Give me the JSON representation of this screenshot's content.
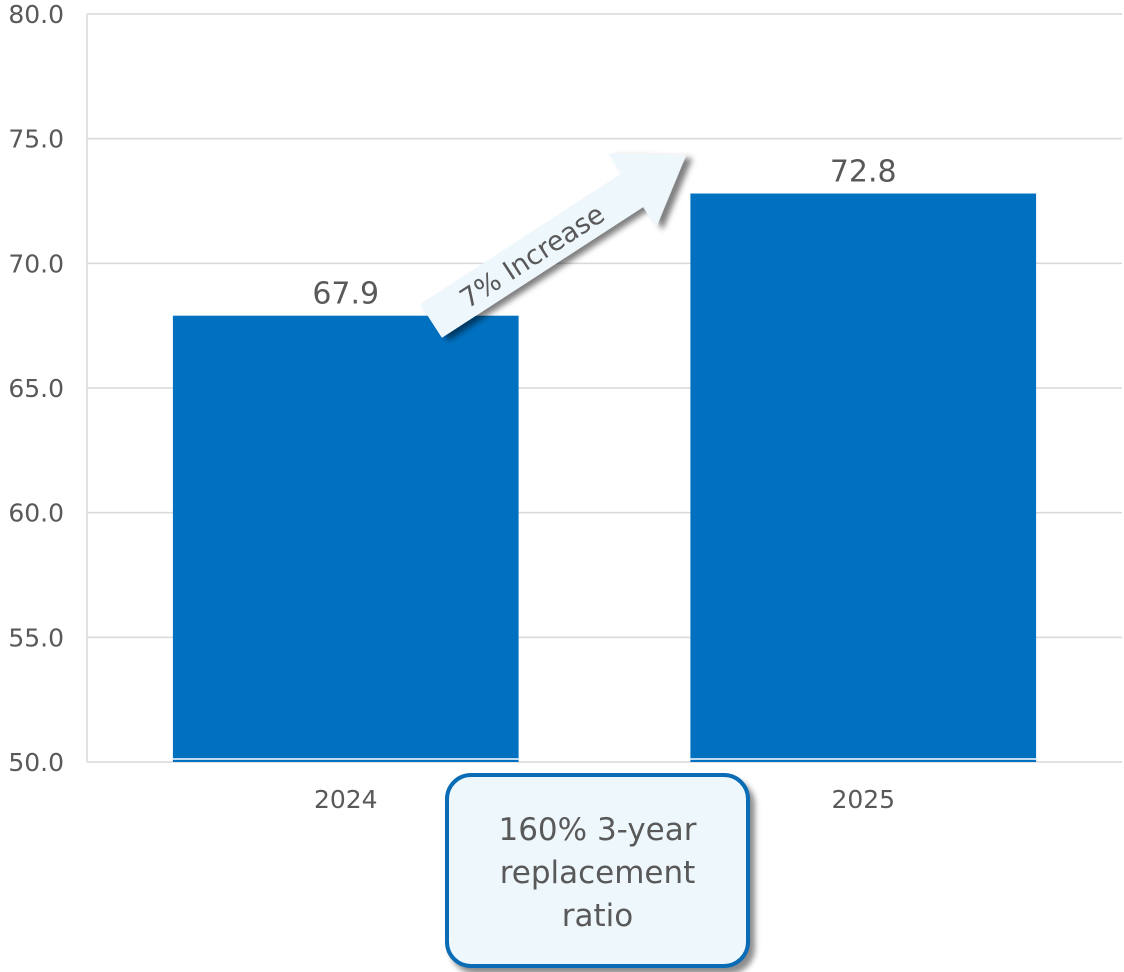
{
  "chart_data": {
    "type": "bar",
    "categories": [
      "2024",
      "2025"
    ],
    "values": [
      67.9,
      72.8
    ],
    "data_labels": [
      "67.9",
      "72.8"
    ],
    "ylim": [
      50.0,
      80.0
    ],
    "y_ticks": [
      "50.0",
      "55.0",
      "60.0",
      "65.0",
      "70.0",
      "75.0",
      "80.0"
    ],
    "grid": true,
    "bar_color": "#0070c0"
  },
  "annotations": {
    "arrow_label": "7% Increase",
    "callout": "160% 3-year replacement ratio"
  },
  "colors": {
    "callout_border": "#0a6cb5",
    "callout_fill": "#eef7fc",
    "arrow_fill": "#eef7fc"
  }
}
